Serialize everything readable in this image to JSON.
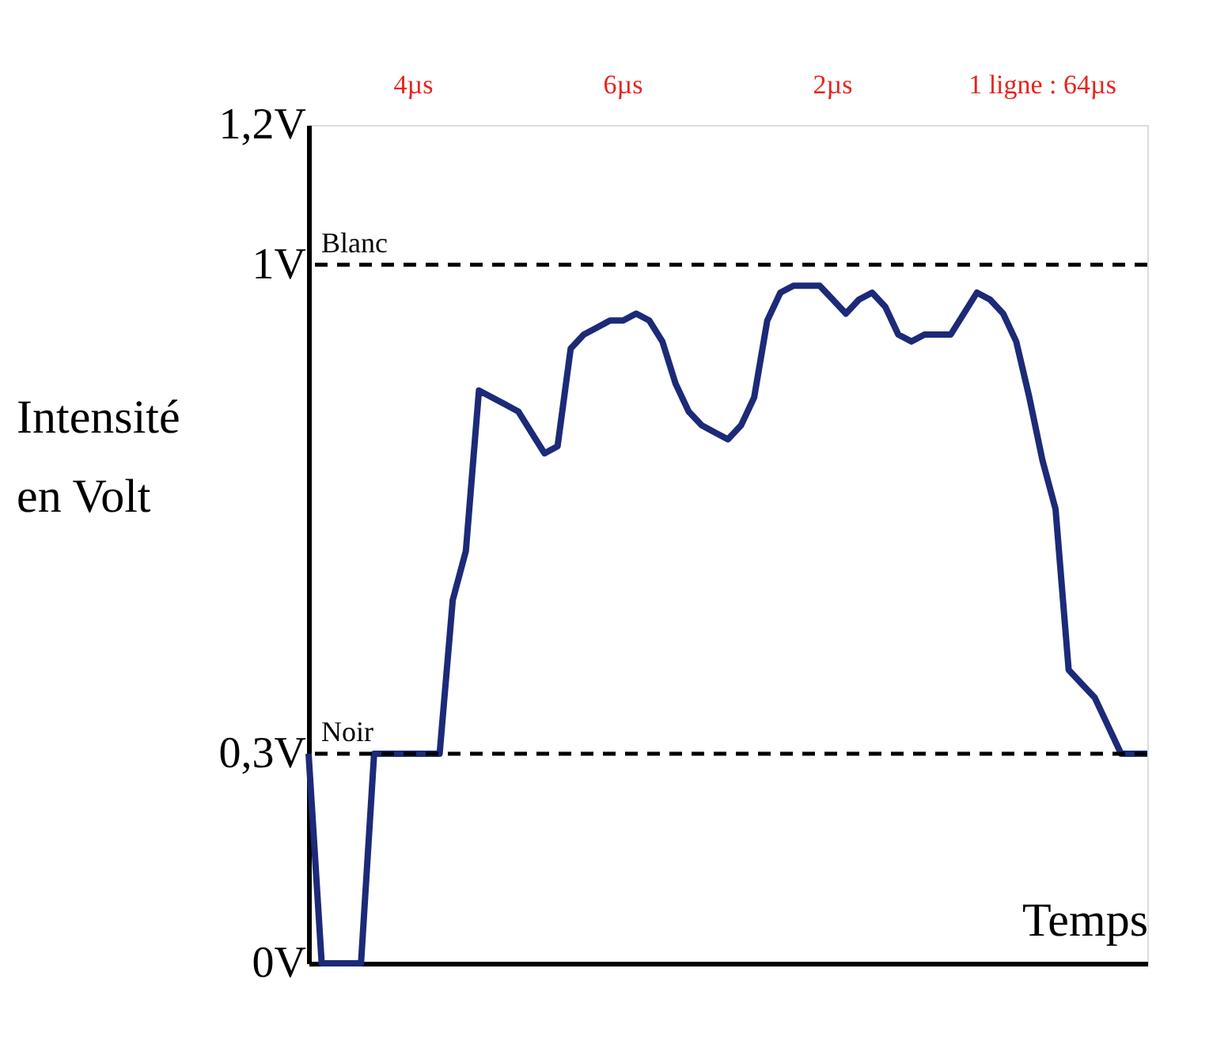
{
  "chart_data": {
    "type": "line",
    "xlabel": "Temps",
    "ylabel": "Intensité en Volt",
    "categories": [
      null,
      null,
      null,
      null,
      null,
      null,
      null,
      null,
      null,
      null,
      null,
      null,
      null,
      null,
      null,
      null,
      null,
      null,
      null,
      null,
      null,
      null,
      null,
      null,
      null,
      null,
      null,
      null,
      null,
      null,
      null,
      null,
      null,
      null,
      null,
      null,
      null,
      null,
      null,
      null,
      null,
      null,
      null,
      null,
      null,
      null,
      null,
      null,
      null,
      null,
      null,
      null,
      null,
      null,
      null,
      null,
      null,
      null,
      null,
      null,
      null,
      null,
      null,
      null,
      null
    ],
    "series": [
      {
        "color": "#1c2a78",
        "values": [
          0.3,
          0,
          0,
          0,
          0,
          0.3,
          0.3,
          0.3,
          0.3,
          0.3,
          0.3,
          0.52,
          0.59,
          0.82,
          0.81,
          0.8,
          0.79,
          0.76,
          0.73,
          0.74,
          0.88,
          0.9,
          0.91,
          0.92,
          0.92,
          0.93,
          0.92,
          0.89,
          0.83,
          0.79,
          0.77,
          0.76,
          0.75,
          0.77,
          0.81,
          0.92,
          0.96,
          0.97,
          0.97,
          0.97,
          0.95,
          0.93,
          0.95,
          0.96,
          0.94,
          0.9,
          0.89,
          0.9,
          0.9,
          0.9,
          0.93,
          0.96,
          0.95,
          0.93,
          0.89,
          0.81,
          0.72,
          0.65,
          0.42,
          0.4,
          0.38,
          0.34,
          0.3,
          0.3,
          0.3
        ]
      }
    ],
    "ylim": [
      0,
      1.2
    ],
    "yticks": [
      {
        "value": 0,
        "label": "0V"
      },
      {
        "value": 0.3,
        "label": "0,3V"
      },
      {
        "value": 1,
        "label": "1V"
      },
      {
        "value": 1.2,
        "label": "1,2V"
      }
    ],
    "tick_labels": "y",
    "grid": false,
    "marker": "none",
    "line_style": "solid",
    "ref_lines": [
      {
        "axis": "y",
        "value": 0.3,
        "label": "Noir",
        "color": "#000000",
        "line_style": "dashed"
      },
      {
        "axis": "y",
        "value": 1,
        "label": "Blanc",
        "color": "#000000",
        "line_style": "dashed"
      }
    ],
    "annotations": [
      "4µs",
      "6µs",
      "2µs",
      "1 ligne : 64µs"
    ]
  }
}
